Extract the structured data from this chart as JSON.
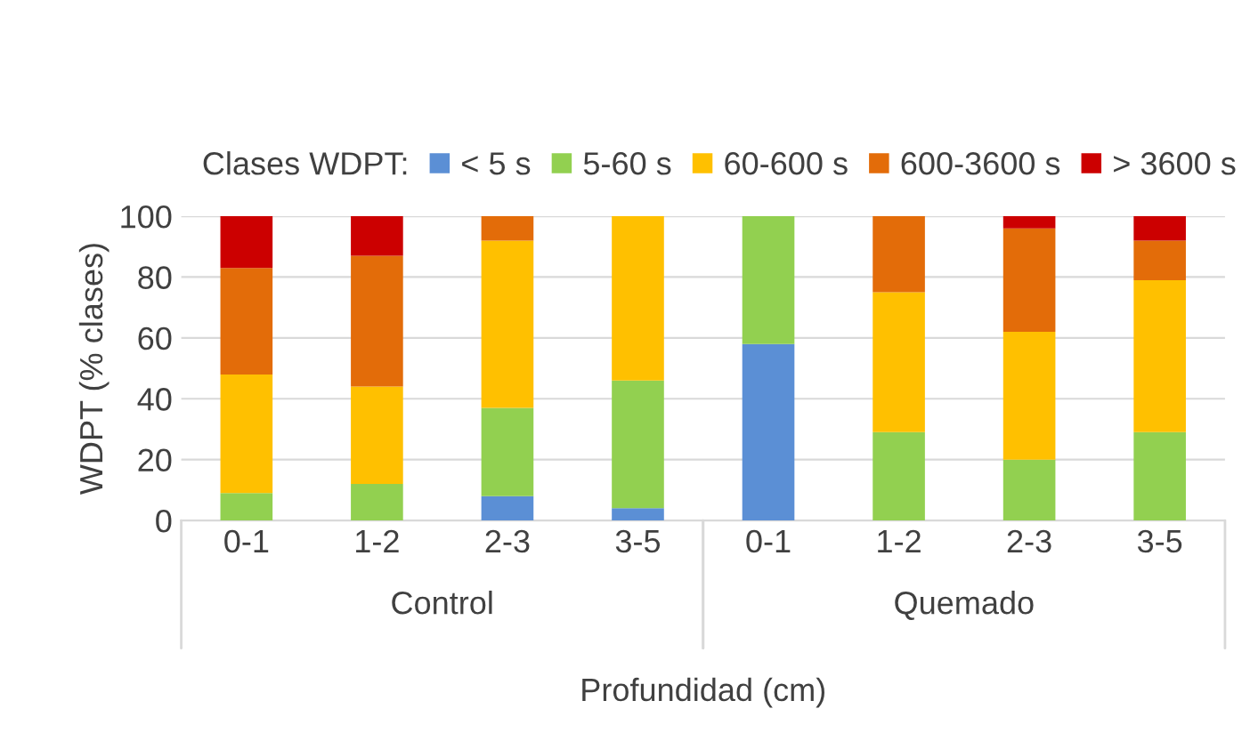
{
  "chart_data": {
    "type": "bar",
    "stacked": true,
    "categories": [
      "0-1",
      "1-2",
      "2-3",
      "3-5",
      "0-1",
      "1-2",
      "2-3",
      "3-5"
    ],
    "annotations": [
      "Control",
      "Quemado"
    ],
    "series": [
      {
        "name": "< 5 s",
        "color": "#5b8fd5",
        "values": [
          0,
          0,
          8,
          4,
          58,
          0,
          0,
          0
        ]
      },
      {
        "name": "5-60 s",
        "color": "#92d050",
        "values": [
          9,
          12,
          29,
          42,
          42,
          29,
          20,
          29
        ]
      },
      {
        "name": "60-600 s",
        "color": "#ffc000",
        "values": [
          39,
          32,
          55,
          54,
          0,
          46,
          42,
          50
        ]
      },
      {
        "name": "600-3600 s",
        "color": "#e36c09",
        "values": [
          35,
          43,
          8,
          0,
          0,
          25,
          34,
          13
        ]
      },
      {
        "name": "> 3600 s",
        "color": "#cc0000",
        "values": [
          17,
          13,
          0,
          0,
          0,
          0,
          4,
          8
        ]
      }
    ],
    "legend_title": "Clases WDPT:",
    "legend": "top",
    "xlabel": "Profundidad (cm)",
    "ylabel": "WDPT (% clases)",
    "ylim": [
      0,
      100
    ],
    "yticks": [
      0,
      20,
      40,
      60,
      80,
      100
    ],
    "grid": "y"
  }
}
